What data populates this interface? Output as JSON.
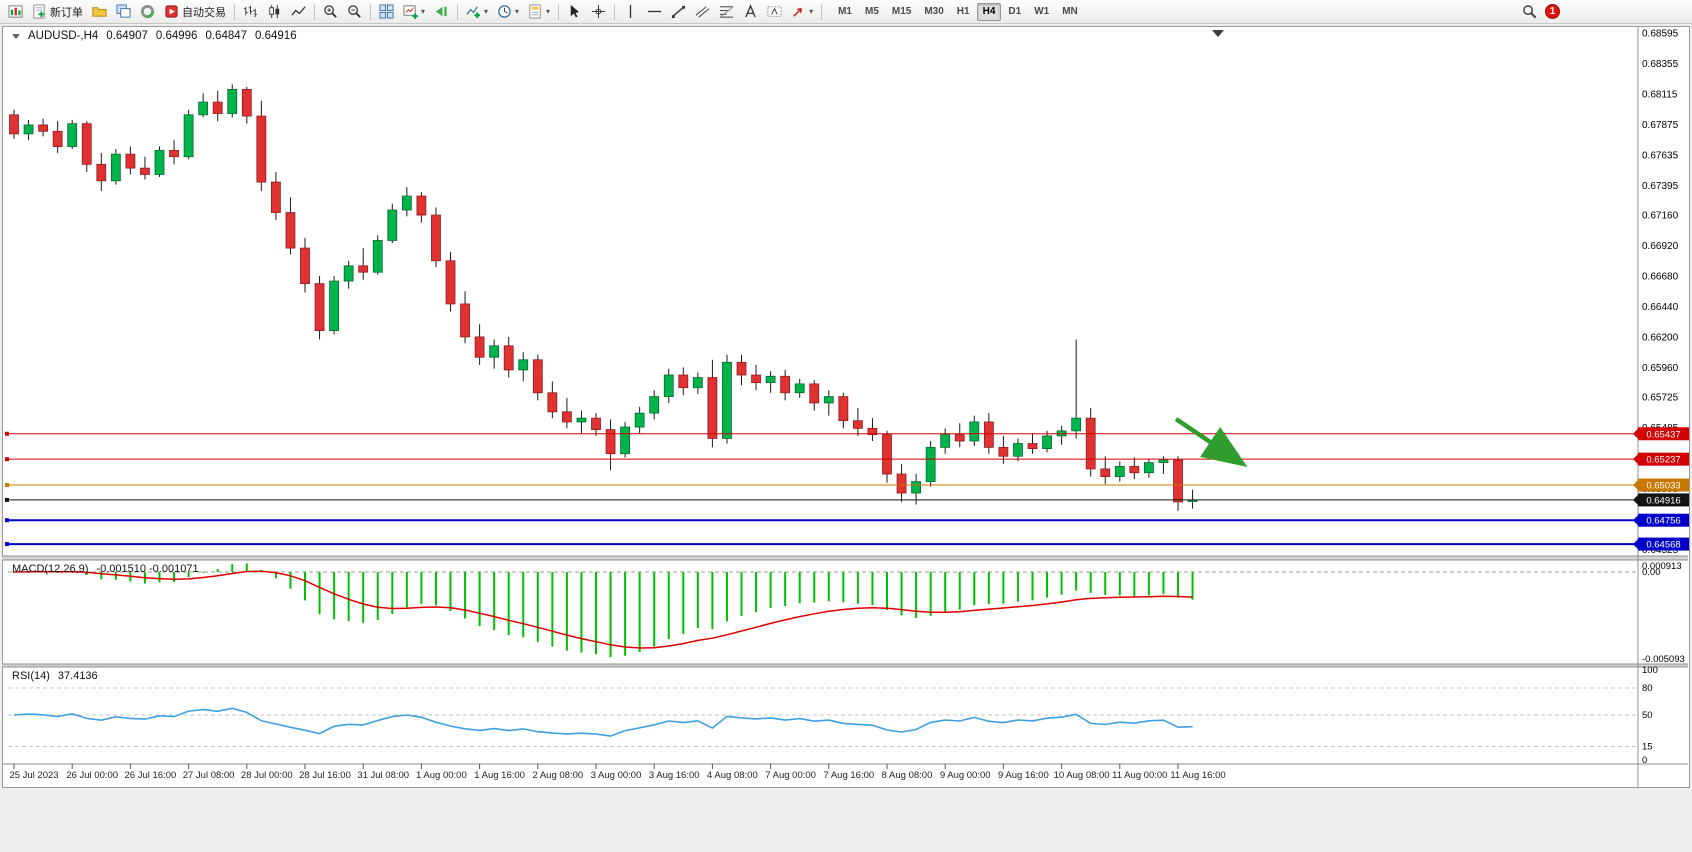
{
  "toolbar": {
    "new_order": "新订单",
    "auto_trading": "自动交易",
    "timeframes": [
      "M1",
      "M5",
      "M15",
      "M30",
      "H1",
      "H4",
      "D1",
      "W1",
      "MN"
    ],
    "active_timeframe": "H4",
    "notification_count": "1"
  },
  "chart_data": {
    "type": "candlestick",
    "title": {
      "symbol": "AUDUSD-,H4",
      "open": "0.64907",
      "high": "0.64996",
      "low": "0.64847",
      "close": "0.64916"
    },
    "price_axis": [
      "0.68595",
      "0.68355",
      "0.68115",
      "0.67875",
      "0.67635",
      "0.67395",
      "0.67160",
      "0.66920",
      "0.66680",
      "0.66440",
      "0.66200",
      "0.65960",
      "0.65725",
      "0.65485",
      "0.65245",
      "0.65005",
      "0.64765",
      "0.64525"
    ],
    "time_axis": [
      "25 Jul 2023",
      "26 Jul 00:00",
      "26 Jul 16:00",
      "27 Jul 08:00",
      "28 Jul 00:00",
      "28 Jul 16:00",
      "31 Jul 08:00",
      "1 Aug 00:00",
      "1 Aug 16:00",
      "2 Aug 08:00",
      "3 Aug 00:00",
      "3 Aug 16:00",
      "4 Aug 08:00",
      "7 Aug 00:00",
      "7 Aug 16:00",
      "8 Aug 08:00",
      "9 Aug 00:00",
      "9 Aug 16:00",
      "10 Aug 08:00",
      "11 Aug 00:00",
      "11 Aug 16:00"
    ],
    "hlines": [
      {
        "value": 0.65437,
        "label": "0.65437",
        "color": "#d20000",
        "width": 1
      },
      {
        "value": 0.65237,
        "label": "0.65237",
        "color": "#d20000",
        "width": 1
      },
      {
        "value": 0.65033,
        "label": "0.65033",
        "color": "#c87800",
        "width": 1
      },
      {
        "value": 0.64916,
        "label": "0.64916",
        "color": "#141414",
        "width": 1
      },
      {
        "value": 0.64756,
        "label": "0.64756",
        "color": "#0000c8",
        "width": 2
      },
      {
        "value": 0.64568,
        "label": "0.64568",
        "color": "#0000c8",
        "width": 2
      }
    ],
    "colors": {
      "up": "#00b34a",
      "down": "#e03232",
      "up_border": "#006b2d",
      "down_border": "#8f1d1d",
      "macd_histogram": "#00c000",
      "macd_signal": "#e00000",
      "rsi_line": "#3f9fdf",
      "arrow": "#2f9e2f"
    },
    "candles": [
      [
        0.6795,
        0.6799,
        0.6776,
        0.678
      ],
      [
        0.678,
        0.6791,
        0.6775,
        0.6787
      ],
      [
        0.6787,
        0.6792,
        0.6778,
        0.6782
      ],
      [
        0.6782,
        0.679,
        0.6765,
        0.677
      ],
      [
        0.677,
        0.6791,
        0.6768,
        0.6788
      ],
      [
        0.6788,
        0.679,
        0.675,
        0.6756
      ],
      [
        0.6756,
        0.6765,
        0.6735,
        0.6743
      ],
      [
        0.6743,
        0.6768,
        0.674,
        0.6764
      ],
      [
        0.6764,
        0.677,
        0.6748,
        0.6753
      ],
      [
        0.6753,
        0.6762,
        0.6744,
        0.6748
      ],
      [
        0.6748,
        0.677,
        0.6746,
        0.6767
      ],
      [
        0.6767,
        0.6775,
        0.6756,
        0.6762
      ],
      [
        0.6762,
        0.6799,
        0.676,
        0.6795
      ],
      [
        0.6795,
        0.6812,
        0.6793,
        0.6805
      ],
      [
        0.6805,
        0.6814,
        0.679,
        0.6796
      ],
      [
        0.6796,
        0.6819,
        0.6793,
        0.6815
      ],
      [
        0.6815,
        0.6817,
        0.6788,
        0.6794
      ],
      [
        0.6794,
        0.6806,
        0.6735,
        0.6742
      ],
      [
        0.6742,
        0.675,
        0.6712,
        0.6718
      ],
      [
        0.6718,
        0.673,
        0.6685,
        0.669
      ],
      [
        0.669,
        0.6698,
        0.6655,
        0.6662
      ],
      [
        0.6662,
        0.6668,
        0.6618,
        0.6625
      ],
      [
        0.6625,
        0.6668,
        0.6622,
        0.6664
      ],
      [
        0.6664,
        0.668,
        0.6658,
        0.6676
      ],
      [
        0.6676,
        0.669,
        0.6665,
        0.6671
      ],
      [
        0.6671,
        0.67,
        0.6669,
        0.6696
      ],
      [
        0.6696,
        0.6725,
        0.6694,
        0.672
      ],
      [
        0.672,
        0.6738,
        0.6715,
        0.6731
      ],
      [
        0.6731,
        0.6734,
        0.671,
        0.6716
      ],
      [
        0.6716,
        0.6722,
        0.6675,
        0.668
      ],
      [
        0.668,
        0.6687,
        0.664,
        0.6646
      ],
      [
        0.6646,
        0.6656,
        0.6615,
        0.662
      ],
      [
        0.662,
        0.663,
        0.6598,
        0.6604
      ],
      [
        0.6604,
        0.6618,
        0.6595,
        0.6613
      ],
      [
        0.6613,
        0.662,
        0.6588,
        0.6594
      ],
      [
        0.6594,
        0.6608,
        0.6585,
        0.6602
      ],
      [
        0.6602,
        0.6606,
        0.657,
        0.6576
      ],
      [
        0.6576,
        0.6585,
        0.6556,
        0.6561
      ],
      [
        0.6561,
        0.6572,
        0.6548,
        0.6553
      ],
      [
        0.6553,
        0.6562,
        0.6544,
        0.6556
      ],
      [
        0.6556,
        0.656,
        0.6542,
        0.6547
      ],
      [
        0.6547,
        0.6555,
        0.6515,
        0.6528
      ],
      [
        0.6528,
        0.6553,
        0.6525,
        0.6549
      ],
      [
        0.6549,
        0.6565,
        0.6544,
        0.656
      ],
      [
        0.656,
        0.6578,
        0.6555,
        0.6573
      ],
      [
        0.6573,
        0.6595,
        0.6568,
        0.659
      ],
      [
        0.659,
        0.6596,
        0.6574,
        0.658
      ],
      [
        0.658,
        0.6592,
        0.6575,
        0.6588
      ],
      [
        0.6588,
        0.6602,
        0.6533,
        0.654
      ],
      [
        0.654,
        0.6606,
        0.6536,
        0.66
      ],
      [
        0.66,
        0.6606,
        0.6582,
        0.659
      ],
      [
        0.659,
        0.6598,
        0.6578,
        0.6584
      ],
      [
        0.6584,
        0.6593,
        0.6576,
        0.6589
      ],
      [
        0.6589,
        0.6594,
        0.657,
        0.6576
      ],
      [
        0.6576,
        0.6587,
        0.6572,
        0.6583
      ],
      [
        0.6583,
        0.6586,
        0.6562,
        0.6568
      ],
      [
        0.6568,
        0.6578,
        0.6558,
        0.6573
      ],
      [
        0.6573,
        0.6576,
        0.6548,
        0.6554
      ],
      [
        0.6554,
        0.6564,
        0.6542,
        0.6548
      ],
      [
        0.6548,
        0.6556,
        0.6538,
        0.6543
      ],
      [
        0.6543,
        0.6546,
        0.6505,
        0.6512
      ],
      [
        0.6512,
        0.652,
        0.649,
        0.6497
      ],
      [
        0.6497,
        0.6512,
        0.6488,
        0.6506
      ],
      [
        0.6506,
        0.6538,
        0.6502,
        0.6533
      ],
      [
        0.6533,
        0.6548,
        0.6528,
        0.6543
      ],
      [
        0.6543,
        0.6552,
        0.6533,
        0.6538
      ],
      [
        0.6538,
        0.6558,
        0.6534,
        0.6553
      ],
      [
        0.6553,
        0.656,
        0.6528,
        0.6533
      ],
      [
        0.6533,
        0.6542,
        0.652,
        0.6526
      ],
      [
        0.6526,
        0.654,
        0.6522,
        0.6536
      ],
      [
        0.6536,
        0.6544,
        0.6528,
        0.6532
      ],
      [
        0.6532,
        0.6546,
        0.6529,
        0.6542
      ],
      [
        0.6542,
        0.655,
        0.6535,
        0.6546
      ],
      [
        0.6546,
        0.6618,
        0.654,
        0.6556
      ],
      [
        0.6556,
        0.6564,
        0.651,
        0.6516
      ],
      [
        0.6516,
        0.6526,
        0.6504,
        0.651
      ],
      [
        0.651,
        0.6522,
        0.6506,
        0.6518
      ],
      [
        0.6518,
        0.6525,
        0.6508,
        0.6513
      ],
      [
        0.6513,
        0.6524,
        0.6509,
        0.6521
      ],
      [
        0.6521,
        0.6526,
        0.6512,
        0.6523
      ],
      [
        0.6523,
        0.6526,
        0.6483,
        0.649
      ],
      [
        0.64907,
        0.64996,
        0.64847,
        0.64916
      ]
    ],
    "indicators": {
      "macd": {
        "label": "MACD(12,26,9)",
        "current": "-0.001510 -0.001071",
        "axis_labels": [
          "0.000913",
          "0.00",
          "-0.005093"
        ]
      },
      "rsi": {
        "label": "RSI(14)",
        "current": "37.4136",
        "axis_labels": [
          "100",
          "80",
          "50",
          "15",
          "0"
        ],
        "levels": [
          80,
          50,
          15
        ]
      }
    },
    "annotation": {
      "type": "arrow",
      "direction": "down-right"
    }
  }
}
